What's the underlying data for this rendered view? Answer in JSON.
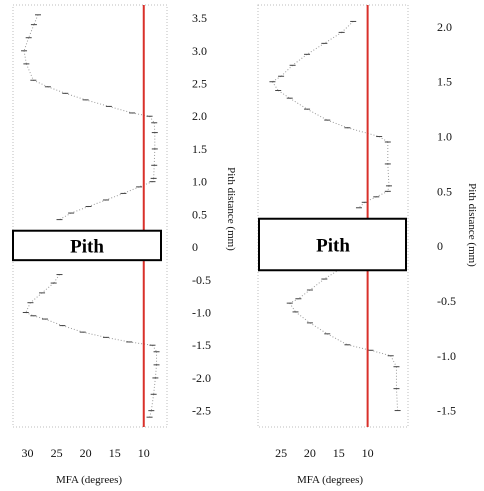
{
  "chart_data": [
    {
      "type": "line",
      "xlabel": "MFA (degrees)",
      "ylabel": "Pith distance (mm)",
      "x_ticks": [
        "30",
        "25",
        "20",
        "15",
        "10"
      ],
      "x_tick_values": [
        30,
        25,
        20,
        15,
        10
      ],
      "y_ticks": [
        "3.5",
        "3.0",
        "2.5",
        "2.0",
        "1.5",
        "1.0",
        "0.5",
        "0",
        "-0.5",
        "-1.0",
        "-1.5",
        "-2.0",
        "-2.5"
      ],
      "y_tick_values": [
        3.5,
        3.0,
        2.5,
        2.0,
        1.5,
        1.0,
        0.5,
        0,
        -0.5,
        -1.0,
        -1.5,
        -2.0,
        -2.5
      ],
      "xlim": [
        32.5,
        6
      ],
      "ylim": [
        -2.75,
        3.7
      ],
      "reference_line": {
        "x": 10,
        "color": "#d9302a"
      },
      "pith_label": "Pith",
      "pith_band": [
        -0.2,
        0.25
      ],
      "series": [
        {
          "points": [
            [
              28.2,
              3.55
            ],
            [
              28.9,
              3.4
            ],
            [
              29.8,
              3.2
            ],
            [
              30.6,
              3.0
            ],
            [
              30.2,
              2.8
            ],
            [
              29.0,
              2.55
            ],
            [
              26.5,
              2.45
            ],
            [
              23.5,
              2.35
            ],
            [
              20.0,
              2.25
            ],
            [
              16.0,
              2.15
            ],
            [
              12.0,
              2.05
            ],
            [
              9.0,
              2.0
            ],
            [
              8.2,
              1.9
            ],
            [
              8.1,
              1.75
            ],
            [
              8.1,
              1.5
            ],
            [
              8.2,
              1.25
            ],
            [
              8.3,
              1.05
            ],
            [
              8.5,
              1.0
            ],
            [
              10.8,
              0.92
            ],
            [
              13.5,
              0.82
            ],
            [
              16.5,
              0.72
            ],
            [
              19.5,
              0.62
            ],
            [
              22.5,
              0.52
            ],
            [
              24.5,
              0.42
            ],
            [
              24.5,
              -0.42
            ],
            [
              25.5,
              -0.55
            ],
            [
              27.5,
              -0.7
            ],
            [
              29.5,
              -0.85
            ],
            [
              30.3,
              -1.0
            ],
            [
              29.0,
              -1.05
            ],
            [
              27.0,
              -1.1
            ],
            [
              24.0,
              -1.2
            ],
            [
              20.5,
              -1.3
            ],
            [
              16.5,
              -1.38
            ],
            [
              12.5,
              -1.45
            ],
            [
              8.5,
              -1.5
            ],
            [
              7.8,
              -1.6
            ],
            [
              7.8,
              -1.8
            ],
            [
              8.0,
              -2.0
            ],
            [
              8.3,
              -2.25
            ],
            [
              8.7,
              -2.5
            ],
            [
              9.0,
              -2.6
            ]
          ]
        }
      ]
    },
    {
      "type": "line",
      "xlabel": "MFA (degrees)",
      "ylabel": "Pith distance (mm)",
      "x_ticks": [
        "25",
        "20",
        "15",
        "10"
      ],
      "x_tick_values": [
        25,
        20,
        15,
        10
      ],
      "y_ticks": [
        "2.0",
        "1.5",
        "1.0",
        "0.5",
        "0",
        "-0.5",
        "-1.0",
        "-1.5"
      ],
      "y_tick_values": [
        2.0,
        1.5,
        1.0,
        0.5,
        0,
        -0.5,
        -1.0,
        -1.5
      ],
      "xlim": [
        29,
        3
      ],
      "ylim": [
        -1.65,
        2.2
      ],
      "reference_line": {
        "x": 10,
        "color": "#d9302a"
      },
      "pith_label": "Pith",
      "pith_band": [
        -0.22,
        0.25
      ],
      "series": [
        {
          "points": [
            [
              12.5,
              2.05
            ],
            [
              14.5,
              1.95
            ],
            [
              17.5,
              1.85
            ],
            [
              20.5,
              1.75
            ],
            [
              23.0,
              1.65
            ],
            [
              25.0,
              1.55
            ],
            [
              26.5,
              1.5
            ],
            [
              25.5,
              1.42
            ],
            [
              23.5,
              1.35
            ],
            [
              20.5,
              1.25
            ],
            [
              17.0,
              1.15
            ],
            [
              13.5,
              1.08
            ],
            [
              8.0,
              1.0
            ],
            [
              6.5,
              0.95
            ],
            [
              6.5,
              0.75
            ],
            [
              6.3,
              0.55
            ],
            [
              6.5,
              0.5
            ],
            [
              8.5,
              0.45
            ],
            [
              10.5,
              0.4
            ],
            [
              11.5,
              0.35
            ],
            [
              14.5,
              -0.2
            ],
            [
              17.5,
              -0.3
            ],
            [
              20.0,
              -0.4
            ],
            [
              22.0,
              -0.48
            ],
            [
              23.5,
              -0.52
            ],
            [
              22.5,
              -0.6
            ],
            [
              20.0,
              -0.7
            ],
            [
              17.0,
              -0.8
            ],
            [
              13.5,
              -0.9
            ],
            [
              9.5,
              -0.95
            ],
            [
              6.0,
              -1.0
            ],
            [
              5.0,
              -1.1
            ],
            [
              5.0,
              -1.3
            ],
            [
              4.8,
              -1.5
            ]
          ]
        }
      ]
    }
  ]
}
